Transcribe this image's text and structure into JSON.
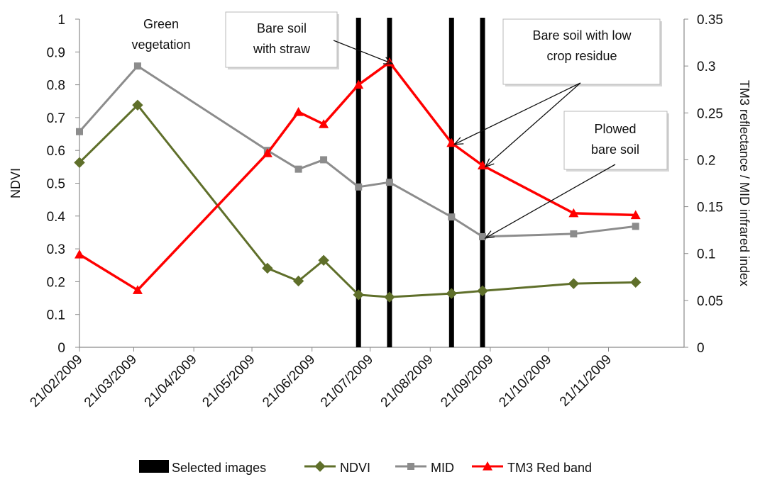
{
  "chart_data": {
    "type": "line",
    "x_ticks": [
      "21/02/2009",
      "21/03/2009",
      "21/04/2009",
      "21/05/2009",
      "21/06/2009",
      "21/07/2009",
      "21/08/2009",
      "21/09/2009",
      "21/10/2009",
      "21/11/2009"
    ],
    "xlim": [
      "2009-02-21",
      "2009-12-30"
    ],
    "y_left": {
      "label": "NDVI",
      "ylim": [
        0,
        1
      ],
      "ticks": [
        "0",
        "0.1",
        "0.2",
        "0.3",
        "0.4",
        "0.5",
        "0.6",
        "0.7",
        "0.8",
        "0.9",
        "1"
      ]
    },
    "y_right": {
      "label": "TM3 reflectance / MID infrared index",
      "ylim": [
        0,
        0.35
      ],
      "ticks": [
        "0",
        "0.05",
        "0.1",
        "0.15",
        "0.2",
        "0.25",
        "0.3",
        "0.35"
      ]
    },
    "series": [
      {
        "name": "NDVI",
        "axis": "left",
        "color": "#5f6f2a",
        "marker": "diamond",
        "points": [
          {
            "x": "2009-02-21",
            "y": 0.563
          },
          {
            "x": "2009-03-23",
            "y": 0.738
          },
          {
            "x": "2009-05-29",
            "y": 0.241
          },
          {
            "x": "2009-06-14",
            "y": 0.202
          },
          {
            "x": "2009-06-27",
            "y": 0.265
          },
          {
            "x": "2009-07-15",
            "y": 0.16
          },
          {
            "x": "2009-07-31",
            "y": 0.153
          },
          {
            "x": "2009-09-01",
            "y": 0.164
          },
          {
            "x": "2009-09-17",
            "y": 0.172
          },
          {
            "x": "2009-11-03",
            "y": 0.194
          },
          {
            "x": "2009-12-05",
            "y": 0.198
          }
        ]
      },
      {
        "name": "MID",
        "axis": "right",
        "color": "#8c8c8c",
        "marker": "square",
        "points": [
          {
            "x": "2009-02-21",
            "y": 0.23
          },
          {
            "x": "2009-03-23",
            "y": 0.3
          },
          {
            "x": "2009-05-29",
            "y": 0.21
          },
          {
            "x": "2009-06-14",
            "y": 0.19
          },
          {
            "x": "2009-06-27",
            "y": 0.2
          },
          {
            "x": "2009-07-15",
            "y": 0.171
          },
          {
            "x": "2009-07-31",
            "y": 0.176
          },
          {
            "x": "2009-09-01",
            "y": 0.139
          },
          {
            "x": "2009-09-17",
            "y": 0.118
          },
          {
            "x": "2009-11-03",
            "y": 0.121
          },
          {
            "x": "2009-12-05",
            "y": 0.129
          }
        ]
      },
      {
        "name": "TM3 Red band",
        "axis": "right",
        "color": "#ff0000",
        "marker": "triangle",
        "points": [
          {
            "x": "2009-02-21",
            "y": 0.099
          },
          {
            "x": "2009-03-23",
            "y": 0.061
          },
          {
            "x": "2009-05-29",
            "y": 0.207
          },
          {
            "x": "2009-06-14",
            "y": 0.251
          },
          {
            "x": "2009-06-27",
            "y": 0.238
          },
          {
            "x": "2009-07-15",
            "y": 0.28
          },
          {
            "x": "2009-07-31",
            "y": 0.304
          },
          {
            "x": "2009-09-01",
            "y": 0.218
          },
          {
            "x": "2009-09-17",
            "y": 0.194
          },
          {
            "x": "2009-11-03",
            "y": 0.143
          },
          {
            "x": "2009-12-05",
            "y": 0.141
          }
        ]
      }
    ],
    "selected_images": {
      "name": "Selected images",
      "color": "#000000",
      "dates": [
        "2009-07-15",
        "2009-07-31",
        "2009-09-01",
        "2009-09-17"
      ]
    },
    "annotations": [
      {
        "text": "Green vegetation",
        "lines": [
          "Green",
          "vegetation"
        ],
        "boxed": false,
        "targets": []
      },
      {
        "text": "Bare soil with straw",
        "lines": [
          "Bare soil",
          "with straw"
        ],
        "boxed": true,
        "targets": [
          {
            "series": "TM3 Red band",
            "x": "2009-07-31"
          }
        ]
      },
      {
        "text": "Bare soil with low crop residue",
        "lines": [
          "Bare soil with low",
          "crop residue"
        ],
        "boxed": true,
        "targets": [
          {
            "series": "TM3 Red band",
            "x": "2009-09-01"
          },
          {
            "series": "TM3 Red band",
            "x": "2009-09-17"
          }
        ]
      },
      {
        "text": "Plowed bare soil",
        "lines": [
          "Plowed",
          "bare soil"
        ],
        "boxed": true,
        "targets": [
          {
            "series": "MID",
            "x": "2009-09-17"
          }
        ]
      }
    ],
    "legend": {
      "position": "bottom",
      "entries": [
        "Selected images",
        "NDVI",
        "MID",
        "TM3 Red band"
      ]
    },
    "grid": false
  }
}
